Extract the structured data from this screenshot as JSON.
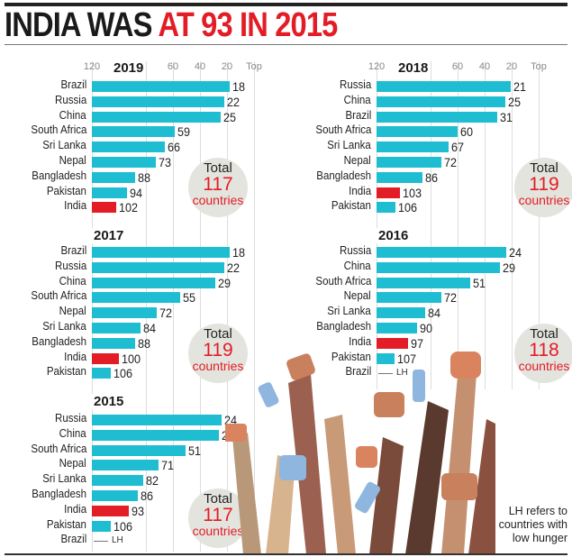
{
  "header": {
    "title_black": "INDIA WAS",
    "title_red": "AT 93 IN 2015"
  },
  "footnote": "LH refers to countries with low hunger",
  "colors": {
    "bar": "#1fbdd1",
    "india": "#e21d26",
    "total_number": "#e21d26",
    "circle": "#e4e4df"
  },
  "chart_data": [
    {
      "type": "bar",
      "orientation": "horizontal",
      "title": "2019",
      "xticks": [
        "120",
        "60",
        "40",
        "20",
        "Top"
      ],
      "x_axis_reversed": true,
      "xlim": [
        120,
        0
      ],
      "grid": true,
      "categories": [
        "Brazil",
        "Russia",
        "China",
        "South Africa",
        "Sri Lanka",
        "Nepal",
        "Bangladesh",
        "Pakistan",
        "India"
      ],
      "values": [
        18,
        22,
        25,
        59,
        66,
        73,
        88,
        94,
        102
      ],
      "highlight": "India",
      "total": {
        "label": "Total",
        "number": "117",
        "unit": "countries"
      }
    },
    {
      "type": "bar",
      "orientation": "horizontal",
      "title": "2018",
      "xticks": [
        "120",
        "60",
        "40",
        "20",
        "Top"
      ],
      "x_axis_reversed": true,
      "xlim": [
        120,
        0
      ],
      "grid": true,
      "categories": [
        "Russia",
        "China",
        "Brazil",
        "South Africa",
        "Sri Lanka",
        "Nepal",
        "Bangladesh",
        "India",
        "Pakistan"
      ],
      "values": [
        21,
        25,
        31,
        60,
        67,
        72,
        86,
        103,
        106
      ],
      "highlight": "India",
      "total": {
        "label": "Total",
        "number": "119",
        "unit": "countries"
      }
    },
    {
      "type": "bar",
      "orientation": "horizontal",
      "title": "2017",
      "x_axis_reversed": true,
      "xlim": [
        120,
        0
      ],
      "grid": true,
      "categories": [
        "Brazil",
        "Russia",
        "China",
        "South Africa",
        "Nepal",
        "Sri Lanka",
        "Bangladesh",
        "India",
        "Pakistan"
      ],
      "values": [
        18,
        22,
        29,
        55,
        72,
        84,
        88,
        100,
        106
      ],
      "highlight": "India",
      "total": {
        "label": "Total",
        "number": "119",
        "unit": "countries"
      }
    },
    {
      "type": "bar",
      "orientation": "horizontal",
      "title": "2016",
      "x_axis_reversed": true,
      "xlim": [
        120,
        0
      ],
      "grid": true,
      "categories": [
        "Russia",
        "China",
        "South Africa",
        "Nepal",
        "Sri Lanka",
        "Bangladesh",
        "India",
        "Pakistan",
        "Brazil"
      ],
      "values": [
        24,
        29,
        51,
        72,
        84,
        90,
        97,
        107,
        null
      ],
      "value_labels": [
        "24",
        "29",
        "51",
        "72",
        "84",
        "90",
        "97",
        "107",
        "LH"
      ],
      "highlight": "India",
      "total": {
        "label": "Total",
        "number": "118",
        "unit": "countries"
      }
    },
    {
      "type": "bar",
      "orientation": "horizontal",
      "title": "2015",
      "x_axis_reversed": true,
      "xlim": [
        120,
        0
      ],
      "grid": true,
      "categories": [
        "Russia",
        "China",
        "South Africa",
        "Nepal",
        "Sri Lanka",
        "Bangladesh",
        "India",
        "Pakistan",
        "Brazil"
      ],
      "values": [
        24,
        26,
        51,
        71,
        82,
        86,
        93,
        106,
        null
      ],
      "value_labels": [
        "24",
        "26",
        "51",
        "71",
        "82",
        "86",
        "93",
        "106",
        "LH"
      ],
      "highlight": "India",
      "total": {
        "label": "Total",
        "number": "117",
        "unit": "countries"
      }
    }
  ]
}
